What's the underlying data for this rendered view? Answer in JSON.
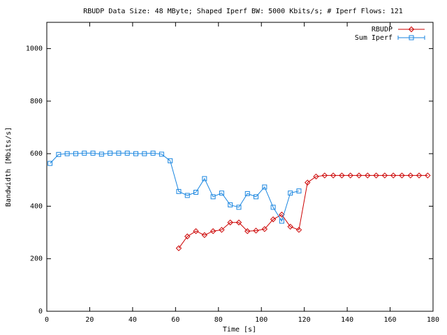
{
  "chart_data": {
    "type": "line",
    "title": "RBUDP Data Size: 48 MByte; Shaped Iperf BW: 5000 Kbits/s; # Iperf Flows: 121",
    "x_label": "Time [s]",
    "y_label": "Bandwidth [Mbits/s]",
    "xlim": [
      0,
      180
    ],
    "xticks": [
      0,
      20,
      40,
      60,
      80,
      100,
      120,
      140,
      160,
      180
    ],
    "ylim": [
      0,
      1100
    ],
    "yticks": [
      0,
      200,
      400,
      600,
      800,
      1000
    ],
    "grid": false,
    "legend": "top-right",
    "series": [
      {
        "name": "RBUDP",
        "color": "#cc0000",
        "marker": "diamond",
        "x": [
          61.5,
          65.5,
          69.5,
          73.5,
          77.5,
          81.5,
          85.5,
          89.5,
          93.5,
          97.5,
          101.5,
          105.5,
          109.5,
          113.5,
          117.5,
          121.5,
          125.5,
          129.5,
          133.5,
          137.5,
          141.5,
          145.5,
          149.5,
          153.5,
          157.5,
          161.5,
          165.5,
          169.5,
          173.5,
          177.5
        ],
        "values": [
          240,
          285,
          305,
          290,
          305,
          310,
          338,
          338,
          305,
          307,
          313,
          350,
          368,
          322,
          310,
          490,
          513,
          517,
          517,
          517,
          517,
          517,
          517,
          517,
          517,
          517,
          517,
          517,
          517,
          517
        ]
      },
      {
        "name": "Sum Iperf",
        "color": "#1a86e0",
        "marker": "square",
        "x": [
          1.5,
          5.5,
          9.5,
          13.5,
          17.5,
          21.5,
          25.5,
          29.5,
          33.5,
          37.5,
          41.5,
          45.5,
          49.5,
          53.5,
          57.5,
          61.5,
          65.5,
          69.5,
          73.5,
          77.5,
          81.5,
          85.5,
          89.5,
          93.5,
          97.5,
          101.5,
          105.5,
          109.5,
          113.5,
          117.5
        ],
        "values": [
          563,
          597,
          600,
          600,
          602,
          602,
          598,
          602,
          602,
          602,
          600,
          600,
          602,
          598,
          573,
          456,
          441,
          453,
          505,
          436,
          450,
          405,
          396,
          448,
          436,
          473,
          396,
          343,
          450,
          458
        ]
      }
    ]
  }
}
